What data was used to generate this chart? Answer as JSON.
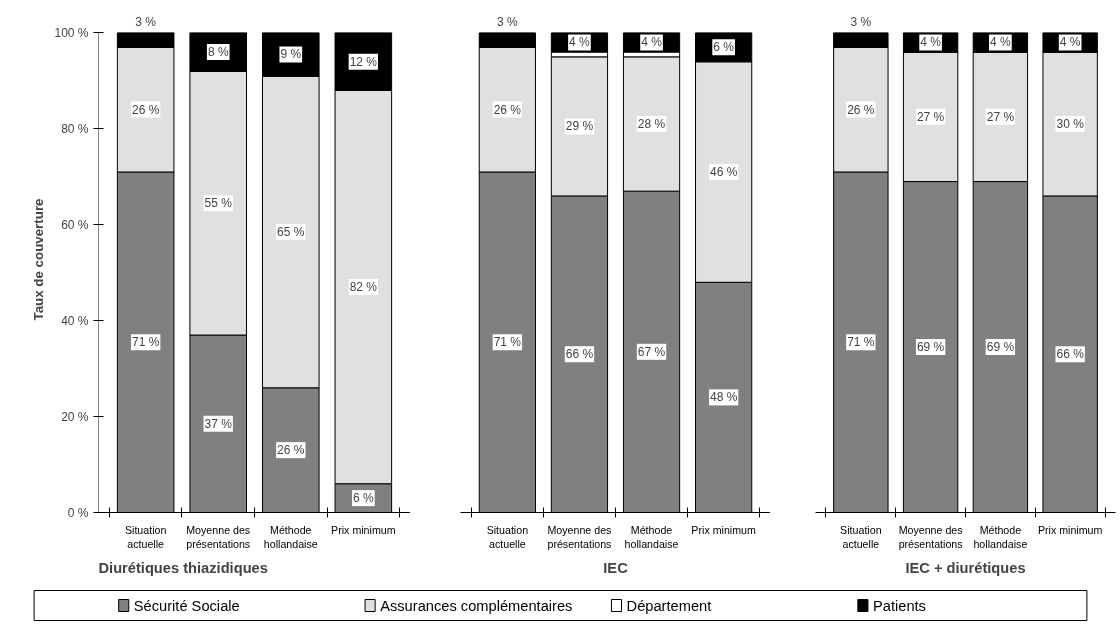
{
  "chart_data": [
    {
      "type": "bar",
      "stacked": true,
      "title": "Diurétiques thiazidiques",
      "ylabel": "Taux de couverture",
      "legend": "bottom",
      "grid": false,
      "categories": [
        "Situation actuelle",
        "Moyenne des présentations",
        "Méthode hollandaise",
        "Prix minimum"
      ],
      "ylim": [
        0,
        100
      ],
      "yticks": [
        {
          "value": 0,
          "label": "0 %"
        },
        {
          "value": 20,
          "label": "20 %"
        },
        {
          "value": 40,
          "label": "40 %"
        },
        {
          "value": 60,
          "label": "60 %"
        },
        {
          "value": 80,
          "label": "80 %"
        },
        {
          "value": 100,
          "label": "100 %"
        }
      ],
      "series": [
        {
          "name": "Sécurité Sociale",
          "color": "#808080",
          "values": [
            71,
            37,
            26,
            6
          ],
          "value_labels": [
            "71 %",
            "37 %",
            "26 %",
            "6 %"
          ]
        },
        {
          "name": "Assurances complémentaires",
          "color": "#e0e0e0",
          "values": [
            26,
            55,
            65,
            82
          ],
          "value_labels": [
            "26 %",
            "55 %",
            "65 %",
            "82 %"
          ]
        },
        {
          "name": "Département",
          "color": "#ffffff",
          "values": [
            0,
            0,
            0,
            0
          ]
        },
        {
          "name": "Patients",
          "color": "#000000",
          "values": [
            3,
            8,
            9,
            12
          ],
          "value_labels": [
            "3 %",
            "8 %",
            "9 %",
            "12 %"
          ]
        }
      ]
    },
    {
      "type": "bar",
      "stacked": true,
      "title": "IEC",
      "grid": false,
      "tick_labels": "x",
      "categories": [
        "Situation actuelle",
        "Moyenne des présentations",
        "Méthode hollandaise",
        "Prix minimum"
      ],
      "ylim": [
        0,
        100
      ],
      "series": [
        {
          "color": "#808080",
          "values": [
            71,
            66,
            67,
            48
          ],
          "value_labels": [
            "71 %",
            "66 %",
            "67 %",
            "48 %"
          ]
        },
        {
          "color": "#e0e0e0",
          "values": [
            26,
            29,
            28,
            46
          ],
          "value_labels": [
            "26 %",
            "29 %",
            "28 %",
            "46 %"
          ]
        },
        {
          "color": "#ffffff",
          "values": [
            0,
            1,
            1,
            0
          ]
        },
        {
          "color": "#000000",
          "values": [
            3,
            4,
            4,
            6
          ],
          "value_labels": [
            "3 %",
            "4 %",
            "4 %",
            "6 %"
          ]
        }
      ]
    },
    {
      "type": "bar",
      "stacked": true,
      "title": "IEC + diurétiques",
      "grid": false,
      "tick_labels": "x",
      "categories": [
        "Situation actuelle",
        "Moyenne des présentations",
        "Méthode hollandaise",
        "Prix minimum"
      ],
      "ylim": [
        0,
        100
      ],
      "series": [
        {
          "color": "#808080",
          "values": [
            71,
            69,
            69,
            66
          ],
          "value_labels": [
            "71 %",
            "69 %",
            "69 %",
            "66 %"
          ]
        },
        {
          "color": "#e0e0e0",
          "values": [
            26,
            27,
            27,
            30
          ],
          "value_labels": [
            "26 %",
            "27 %",
            "27 %",
            "30 %"
          ]
        },
        {
          "color": "#ffffff",
          "values": [
            0,
            0,
            0,
            0
          ]
        },
        {
          "color": "#000000",
          "values": [
            3,
            4,
            4,
            4
          ],
          "value_labels": [
            "3 %",
            "4 %",
            "4 %",
            "4 %"
          ]
        }
      ]
    }
  ]
}
